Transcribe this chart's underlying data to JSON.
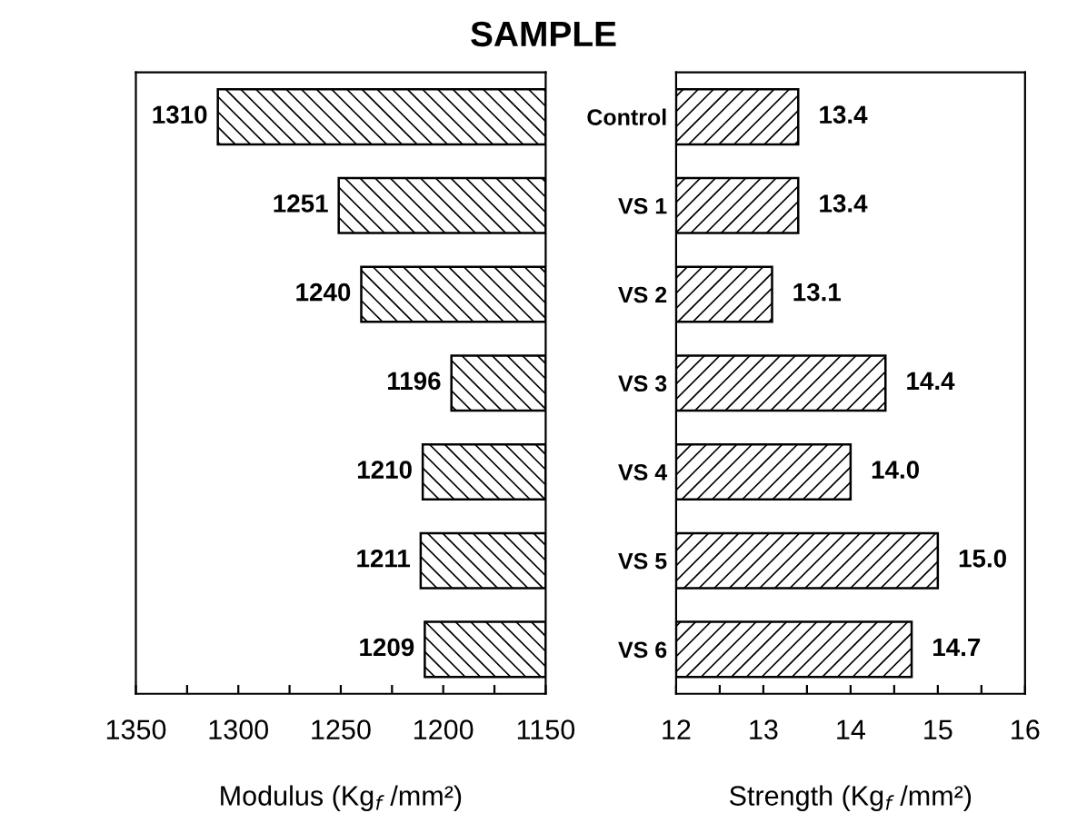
{
  "chart_data": [
    {
      "type": "bar",
      "orientation": "horizontal",
      "title": "SAMPLE",
      "xlabel": "Modulus (Kg$_{f}$ /mm²)",
      "categories": [
        null,
        null,
        null,
        null,
        null,
        null,
        null
      ],
      "values": [
        1310,
        1251,
        1240,
        1196,
        1210,
        1211,
        1209
      ],
      "color": "#000000",
      "xlim": [
        1350,
        1150
      ],
      "xticks": [
        1350,
        {
          "value": 1325,
          "label": null
        },
        1300,
        {
          "value": 1275,
          "label": null
        },
        1250,
        {
          "value": 1225,
          "label": null
        },
        1200,
        {
          "value": 1175,
          "label": null
        },
        1150
      ],
      "tick_labels": "x",
      "data_labels": true,
      "grid": false,
      "legend": false
    },
    {
      "type": "bar",
      "orientation": "horizontal",
      "xlabel": "Strength (Kg$_{f}$ /mm²)",
      "categories": [
        "Control",
        "VS 1",
        "VS 2",
        "VS 3",
        "VS 4",
        "VS 5",
        "VS 6"
      ],
      "values": [
        13.4,
        13.4,
        13.1,
        14.4,
        14.0,
        15.0,
        14.7
      ],
      "color": "#000000",
      "value_labels": [
        "13.4",
        "13.4",
        "13.1",
        "14.4",
        "14.0",
        "15.0",
        "14.7"
      ],
      "xlim": [
        12,
        16
      ],
      "xticks": [
        12,
        {
          "value": 12.5,
          "label": null
        },
        13,
        {
          "value": 13.5,
          "label": null
        },
        14,
        {
          "value": 14.5,
          "label": null
        },
        15,
        {
          "value": 15.5,
          "label": null
        },
        16
      ],
      "grid": false,
      "legend": false
    }
  ]
}
